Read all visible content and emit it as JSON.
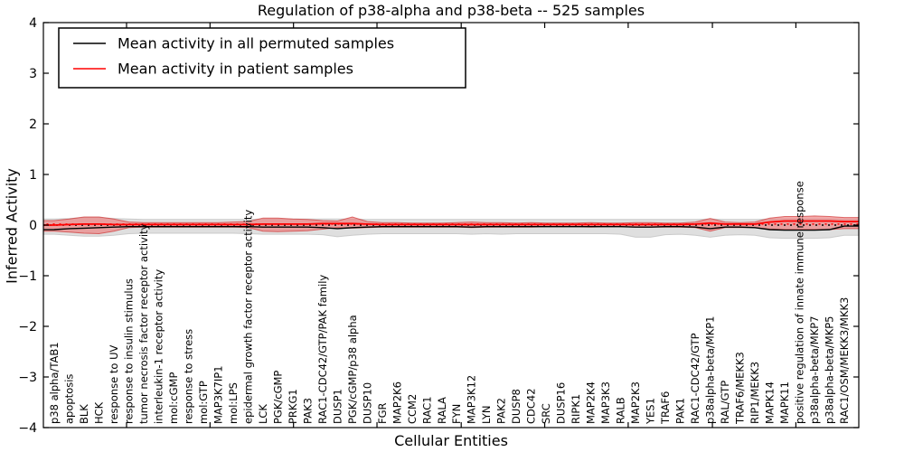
{
  "figure": {
    "background": "#ffffff"
  },
  "chart_data": {
    "type": "line",
    "title": "Regulation of p38-alpha and p38-beta -- 525 samples",
    "xlabel": "Cellular Entities",
    "ylabel": "Inferred Activity",
    "ylim": [
      -4,
      4
    ],
    "yticks": [
      "4",
      "3",
      "2",
      "1",
      "0",
      "−1",
      "−2",
      "−3",
      "−4"
    ],
    "ytick_values": [
      4,
      3,
      2,
      1,
      0,
      -1,
      -2,
      -3,
      -4
    ],
    "x_axis_tick_positions": [
      4.85,
      10.45,
      16.05,
      21.65,
      27.3,
      32.9,
      38.5,
      44.15,
      49.75
    ],
    "grid": false,
    "legend": {
      "position": "upper-left",
      "background": "#ffffff",
      "border_color": "#000000"
    },
    "categories": [
      "p38 alpha/TAB1",
      "apoptosis",
      "BLK",
      "HCK",
      "response to UV",
      "response to insulin stimulus",
      "tumor necrosis factor receptor activity",
      "interleukin-1 receptor activity",
      "mol:cGMP",
      "response to stress",
      "mol:GTP",
      "MAP3K7IP1",
      "mol:LPS",
      "epidermal growth factor receptor activity",
      "LCK",
      "PGK/cGMP",
      "PRKG1",
      "PAK3",
      "RAC1-CDC42/GTP/PAK family",
      "DUSP1",
      "PGK/cGMP/p38 alpha",
      "DUSP10",
      "FGR",
      "MAP2K6",
      "CCM2",
      "RAC1",
      "RALA",
      "FYN",
      "MAP3K12",
      "LYN",
      "PAK2",
      "DUSP8",
      "CDC42",
      "SRC",
      "DUSP16",
      "RIPK1",
      "MAP2K4",
      "MAP3K3",
      "RALB",
      "MAP2K3",
      "YES1",
      "TRAF6",
      "PAK1",
      "RAC1-CDC42/GTP",
      "p38alpha-beta/MKP1",
      "RAL/GTP",
      "TRAF6/MEKK3",
      "RIP1/MEKK3",
      "MAPK14",
      "MAPK11",
      "positive regulation of innate immune response",
      "p38alpha-beta/MKP7",
      "p38alpha-beta/MKP5",
      "RAC1/OSM/MEKK3/MKK3"
    ],
    "series": [
      {
        "name": "Mean activity in all permuted samples",
        "color": "#000000",
        "style": "solid",
        "width": 1.4,
        "values": [
          -0.09,
          -0.07,
          -0.06,
          -0.05,
          -0.04,
          -0.03,
          -0.03,
          -0.03,
          -0.03,
          -0.03,
          -0.03,
          -0.03,
          -0.03,
          -0.03,
          -0.04,
          -0.04,
          -0.04,
          -0.04,
          -0.05,
          -0.07,
          -0.05,
          -0.04,
          -0.03,
          -0.03,
          -0.03,
          -0.03,
          -0.03,
          -0.03,
          -0.04,
          -0.03,
          -0.03,
          -0.03,
          -0.03,
          -0.03,
          -0.03,
          -0.03,
          -0.03,
          -0.03,
          -0.03,
          -0.04,
          -0.04,
          -0.03,
          -0.03,
          -0.04,
          -0.07,
          -0.04,
          -0.04,
          -0.05,
          -0.09,
          -0.1,
          -0.1,
          -0.1,
          -0.09,
          -0.02
        ]
      },
      {
        "name": "Mean activity in patient samples",
        "color": "#ff0000",
        "style": "solid",
        "width": 1.8,
        "values": [
          0.0,
          0.01,
          0.02,
          0.02,
          0.01,
          0.01,
          0.01,
          0.01,
          0.01,
          0.01,
          0.01,
          0.01,
          0.01,
          0.01,
          0.02,
          0.02,
          0.02,
          0.02,
          0.03,
          0.03,
          0.03,
          0.02,
          0.01,
          0.01,
          0.01,
          0.01,
          0.01,
          0.01,
          0.01,
          0.01,
          0.01,
          0.01,
          0.01,
          0.01,
          0.01,
          0.01,
          0.01,
          0.01,
          0.01,
          0.01,
          0.01,
          0.01,
          0.01,
          0.02,
          0.04,
          0.02,
          0.02,
          0.02,
          0.06,
          0.08,
          0.08,
          0.08,
          0.08,
          0.07
        ]
      }
    ],
    "reference_lines": [
      {
        "name": "permuted-median",
        "color": "#000000",
        "style": "dotted",
        "value": 0.0
      },
      {
        "name": "patient-median",
        "color": "#ff0000",
        "style": "dotted",
        "value": 0.02
      }
    ],
    "bands": [
      {
        "name": "permuted-distribution",
        "fill": "#d9d9d9",
        "stroke": "#c4c4c4",
        "opacity": 0.85,
        "upper": [
          0.12,
          0.13,
          0.15,
          0.15,
          0.13,
          0.12,
          0.11,
          0.11,
          0.11,
          0.11,
          0.11,
          0.11,
          0.11,
          0.11,
          0.12,
          0.12,
          0.12,
          0.12,
          0.12,
          0.12,
          0.12,
          0.11,
          0.11,
          0.11,
          0.11,
          0.11,
          0.11,
          0.11,
          0.11,
          0.11,
          0.11,
          0.11,
          0.11,
          0.11,
          0.11,
          0.11,
          0.11,
          0.11,
          0.11,
          0.11,
          0.11,
          0.11,
          0.11,
          0.11,
          0.12,
          0.11,
          0.11,
          0.11,
          0.12,
          0.12,
          0.12,
          0.12,
          0.12,
          0.11
        ],
        "lower": [
          -0.18,
          -0.2,
          -0.22,
          -0.22,
          -0.2,
          -0.17,
          -0.16,
          -0.16,
          -0.16,
          -0.16,
          -0.16,
          -0.16,
          -0.16,
          -0.17,
          -0.18,
          -0.18,
          -0.18,
          -0.18,
          -0.19,
          -0.23,
          -0.2,
          -0.18,
          -0.17,
          -0.17,
          -0.17,
          -0.17,
          -0.17,
          -0.17,
          -0.18,
          -0.17,
          -0.18,
          -0.17,
          -0.17,
          -0.17,
          -0.17,
          -0.17,
          -0.17,
          -0.17,
          -0.18,
          -0.24,
          -0.24,
          -0.19,
          -0.18,
          -0.2,
          -0.24,
          -0.2,
          -0.19,
          -0.2,
          -0.25,
          -0.26,
          -0.26,
          -0.26,
          -0.25,
          -0.2
        ]
      },
      {
        "name": "patient-distribution",
        "fill": "#ee7777",
        "stroke": "#cc2222",
        "opacity": 0.62,
        "upper": [
          0.09,
          0.12,
          0.16,
          0.16,
          0.12,
          0.06,
          0.05,
          0.05,
          0.05,
          0.05,
          0.05,
          0.05,
          0.06,
          0.07,
          0.14,
          0.14,
          0.12,
          0.11,
          0.09,
          0.08,
          0.16,
          0.07,
          0.05,
          0.05,
          0.04,
          0.04,
          0.04,
          0.05,
          0.06,
          0.05,
          0.05,
          0.04,
          0.05,
          0.04,
          0.04,
          0.04,
          0.05,
          0.04,
          0.04,
          0.05,
          0.05,
          0.04,
          0.04,
          0.06,
          0.13,
          0.06,
          0.05,
          0.06,
          0.14,
          0.17,
          0.17,
          0.18,
          0.17,
          0.15
        ],
        "lower": [
          -0.12,
          -0.14,
          -0.16,
          -0.17,
          -0.12,
          -0.05,
          -0.04,
          -0.04,
          -0.04,
          -0.04,
          -0.04,
          -0.04,
          -0.04,
          -0.05,
          -0.12,
          -0.13,
          -0.12,
          -0.11,
          -0.08,
          -0.05,
          -0.06,
          -0.05,
          -0.04,
          -0.04,
          -0.04,
          -0.04,
          -0.04,
          -0.04,
          -0.05,
          -0.04,
          -0.04,
          -0.04,
          -0.04,
          -0.03,
          -0.03,
          -0.03,
          -0.04,
          -0.03,
          -0.03,
          -0.04,
          -0.04,
          -0.04,
          -0.04,
          -0.05,
          -0.12,
          -0.05,
          -0.05,
          -0.05,
          -0.08,
          -0.09,
          -0.09,
          -0.09,
          -0.09,
          -0.07
        ]
      }
    ]
  }
}
